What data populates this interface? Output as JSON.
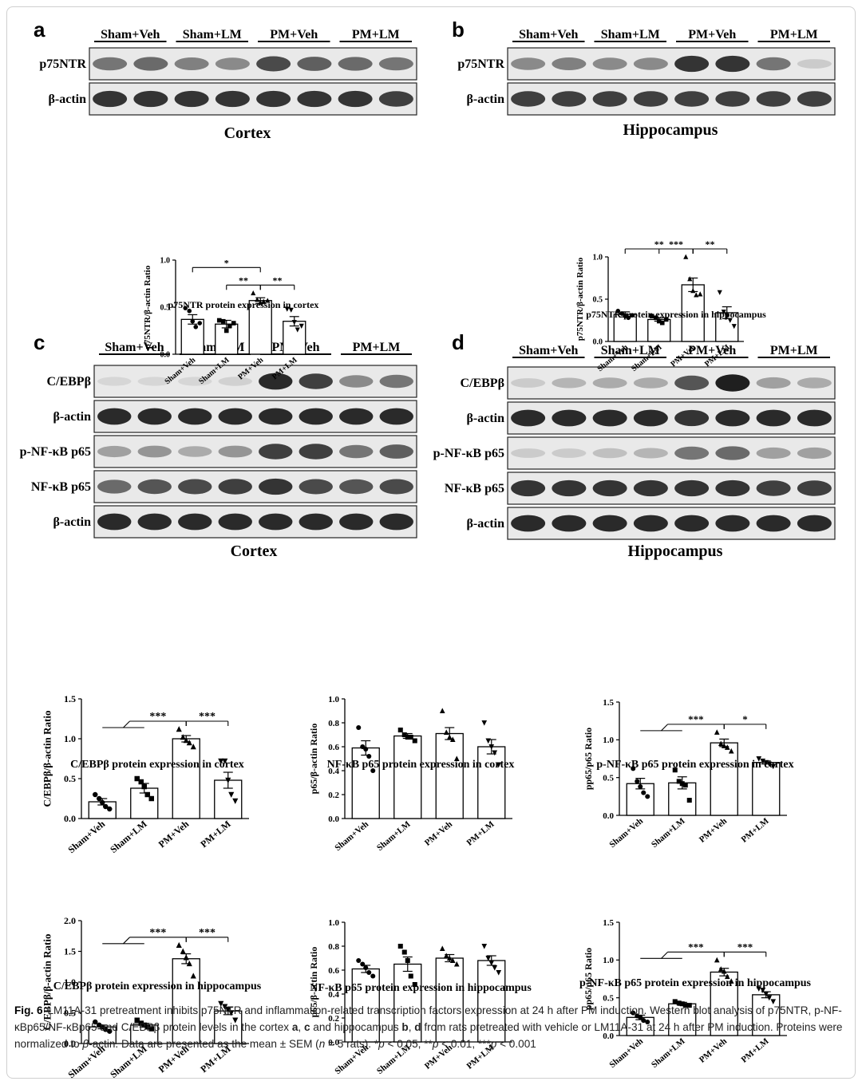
{
  "figure": {
    "panel_labels": [
      "a",
      "b",
      "c",
      "d"
    ],
    "region_labels": [
      "Cortex",
      "Hippocampus",
      "Cortex",
      "Hippocampus"
    ]
  },
  "blots": [
    {
      "groups": [
        "Sham+Veh",
        "Sham+LM",
        "PM+Veh",
        "PM+LM"
      ],
      "rows": [
        {
          "label": "p75NTR",
          "intensity": [
            0.55,
            0.6,
            0.5,
            0.45,
            0.75,
            0.65,
            0.6,
            0.55
          ]
        },
        {
          "label": "β-actin",
          "intensity": [
            0.85,
            0.85,
            0.85,
            0.85,
            0.85,
            0.85,
            0.85,
            0.8
          ]
        }
      ]
    },
    {
      "groups": [
        "Sham+Veh",
        "Sham+LM",
        "PM+Veh",
        "PM+LM"
      ],
      "rows": [
        {
          "label": "p75NTR",
          "intensity": [
            0.45,
            0.5,
            0.45,
            0.45,
            0.85,
            0.85,
            0.55,
            0.15
          ]
        },
        {
          "label": "β-actin",
          "intensity": [
            0.8,
            0.8,
            0.8,
            0.8,
            0.8,
            0.8,
            0.8,
            0.8
          ]
        }
      ]
    },
    {
      "groups": [
        "Sham+Veh",
        "Sham+LM",
        "PM+Veh",
        "PM+LM"
      ],
      "rows": [
        {
          "label": "C/EBPβ",
          "intensity": [
            0.1,
            0.1,
            0.1,
            0.12,
            0.9,
            0.8,
            0.45,
            0.55
          ]
        },
        {
          "label": "β-actin",
          "intensity": [
            0.9,
            0.9,
            0.9,
            0.9,
            0.9,
            0.9,
            0.9,
            0.9
          ]
        },
        {
          "label": "p-NF-κB p65",
          "intensity": [
            0.35,
            0.4,
            0.3,
            0.4,
            0.8,
            0.8,
            0.55,
            0.65
          ]
        },
        {
          "label": "NF-κB p65",
          "intensity": [
            0.6,
            0.7,
            0.75,
            0.8,
            0.85,
            0.75,
            0.7,
            0.75
          ]
        },
        {
          "label": "β-actin",
          "intensity": [
            0.9,
            0.9,
            0.9,
            0.9,
            0.9,
            0.9,
            0.9,
            0.9
          ]
        }
      ]
    },
    {
      "groups": [
        "Sham+Veh",
        "Sham+LM",
        "PM+Veh",
        "PM+LM"
      ],
      "rows": [
        {
          "label": "C/EBPβ",
          "intensity": [
            0.15,
            0.25,
            0.3,
            0.3,
            0.7,
            0.95,
            0.35,
            0.3
          ]
        },
        {
          "label": "β-actin",
          "intensity": [
            0.9,
            0.9,
            0.9,
            0.9,
            0.85,
            0.9,
            0.9,
            0.9
          ]
        },
        {
          "label": "p-NF-κB p65",
          "intensity": [
            0.15,
            0.15,
            0.2,
            0.25,
            0.55,
            0.6,
            0.35,
            0.35
          ]
        },
        {
          "label": "NF-κB p65",
          "intensity": [
            0.85,
            0.85,
            0.85,
            0.85,
            0.85,
            0.85,
            0.8,
            0.8
          ]
        },
        {
          "label": "β-actin",
          "intensity": [
            0.9,
            0.9,
            0.9,
            0.9,
            0.9,
            0.9,
            0.9,
            0.9
          ]
        }
      ]
    }
  ],
  "chart_data": [
    {
      "type": "bar",
      "categories": [
        "Sham+Veh",
        "Sham+LM",
        "PM+Veh",
        "PM+LM"
      ],
      "values": [
        0.37,
        0.32,
        0.57,
        0.35
      ],
      "sem": [
        0.05,
        0.04,
        0.03,
        0.05
      ],
      "points": [
        [
          0.49,
          0.46,
          0.35,
          0.29,
          0.33
        ],
        [
          0.36,
          0.35,
          0.25,
          0.3,
          0.33
        ],
        [
          0.65,
          0.58,
          0.55,
          0.56,
          0.57
        ],
        [
          0.48,
          0.47,
          0.34,
          0.26,
          0.3
        ]
      ],
      "marker": [
        "circle",
        "square",
        "triangle",
        "tri-down"
      ],
      "ylabel": "p75NTR/β-actin Ratio",
      "ylim": [
        0,
        1.0
      ],
      "yticks": [
        "0.0",
        "0.5",
        "1.0"
      ],
      "xlabel": "p75NTR protein expression in cortex",
      "sig": [
        {
          "label": "*",
          "from": 0,
          "to": 2
        },
        {
          "label": "**",
          "from": 1,
          "to": 2
        },
        {
          "label": "**",
          "from": 2,
          "to": 3
        }
      ]
    },
    {
      "type": "bar",
      "categories": [
        "Sham+Veh",
        "Sham+LM",
        "PM+Veh",
        "PM+LM"
      ],
      "values": [
        0.32,
        0.26,
        0.67,
        0.34
      ],
      "sem": [
        0.03,
        0.02,
        0.08,
        0.07
      ],
      "points": [
        [
          0.36,
          0.33,
          0.3,
          0.28,
          0.31
        ],
        [
          0.3,
          0.28,
          0.24,
          0.22,
          0.26
        ],
        [
          1.0,
          0.74,
          0.6,
          0.55,
          0.56
        ],
        [
          0.58,
          0.35,
          0.3,
          0.25,
          0.18
        ]
      ],
      "marker": [
        "circle",
        "square",
        "triangle",
        "tri-down"
      ],
      "ylabel": "p75NTR/β-actin Ratio",
      "ylim": [
        0,
        1.0
      ],
      "yticks": [
        "0.0",
        "0.5",
        "1.0"
      ],
      "xlabel": "p75NTR protein expression in hippocampus",
      "sig": [
        {
          "label": "**",
          "from": 0,
          "to": 2
        },
        {
          "label": "***",
          "from": 1,
          "to": 2
        },
        {
          "label": "**",
          "from": 2,
          "to": 3
        }
      ]
    },
    {
      "type": "bar",
      "categories": [
        "Sham+Veh",
        "Sham+LM",
        "PM+Veh",
        "PM+LM"
      ],
      "values": [
        0.21,
        0.38,
        1.0,
        0.48
      ],
      "sem": [
        0.04,
        0.06,
        0.04,
        0.1
      ],
      "points": [
        [
          0.3,
          0.25,
          0.2,
          0.15,
          0.12
        ],
        [
          0.5,
          0.46,
          0.4,
          0.3,
          0.25
        ],
        [
          1.12,
          1.02,
          0.98,
          0.95,
          0.9
        ],
        [
          0.72,
          0.72,
          0.48,
          0.3,
          0.22
        ]
      ],
      "marker": [
        "circle",
        "square",
        "triangle",
        "tri-down"
      ],
      "ylabel": "C/EBPβ/β-actin Ratio",
      "ylim": [
        0,
        1.5
      ],
      "yticks": [
        "0.0",
        "0.5",
        "1.0",
        "1.5"
      ],
      "xlabel": "C/EBPβ protein expression in cortex",
      "sig": [
        {
          "label": "***",
          "from": 0,
          "to": 2,
          "group": [
            0,
            1
          ]
        },
        {
          "label": "***",
          "from": 2,
          "to": 3
        }
      ]
    },
    {
      "type": "bar",
      "categories": [
        "Sham+Veh",
        "Sham+LM",
        "PM+Veh",
        "PM+LM"
      ],
      "values": [
        0.59,
        0.69,
        0.71,
        0.6
      ],
      "sem": [
        0.06,
        0.02,
        0.05,
        0.06
      ],
      "points": [
        [
          0.76,
          0.6,
          0.58,
          0.52,
          0.4
        ],
        [
          0.74,
          0.7,
          0.68,
          0.68,
          0.65
        ],
        [
          0.9,
          0.72,
          0.68,
          0.66,
          0.5
        ],
        [
          0.8,
          0.65,
          0.6,
          0.55,
          0.45
        ]
      ],
      "marker": [
        "circle",
        "square",
        "triangle",
        "tri-down"
      ],
      "ylabel": "p65/β-actin Ratio",
      "ylim": [
        0,
        1.0
      ],
      "yticks": [
        "0.0",
        "0.2",
        "0.4",
        "0.6",
        "0.8",
        "1.0"
      ],
      "xlabel": "NF-κB p65 protein expression in cortex",
      "sig": []
    },
    {
      "type": "bar",
      "categories": [
        "Sham+Veh",
        "Sham+LM",
        "PM+Veh",
        "PM+LM"
      ],
      "values": [
        0.42,
        0.43,
        0.96,
        0.7
      ],
      "sem": [
        0.07,
        0.08,
        0.05,
        0.02
      ],
      "points": [
        [
          0.62,
          0.45,
          0.38,
          0.3,
          0.25
        ],
        [
          0.6,
          0.45,
          0.42,
          0.4,
          0.2
        ],
        [
          1.1,
          0.95,
          0.92,
          0.9,
          0.85
        ],
        [
          0.75,
          0.72,
          0.7,
          0.68,
          0.65
        ]
      ],
      "marker": [
        "circle",
        "square",
        "triangle",
        "tri-down"
      ],
      "ylabel": "pp65/p65 Ratio",
      "ylim": [
        0,
        1.5
      ],
      "yticks": [
        "0.0",
        "0.5",
        "1.0",
        "1.5"
      ],
      "xlabel": "p-NF-κB p65 protein expression in cortex",
      "sig": [
        {
          "label": "***",
          "from": 0,
          "to": 2,
          "group": [
            0,
            1
          ]
        },
        {
          "label": "*",
          "from": 2,
          "to": 3
        }
      ]
    },
    {
      "type": "bar",
      "categories": [
        "Sham+Veh",
        "Sham+LM",
        "PM+Veh",
        "PM+LM"
      ],
      "values": [
        0.27,
        0.3,
        1.38,
        0.53
      ],
      "sem": [
        0.03,
        0.03,
        0.08,
        0.06
      ],
      "points": [
        [
          0.35,
          0.3,
          0.27,
          0.23,
          0.2
        ],
        [
          0.38,
          0.33,
          0.3,
          0.27,
          0.24
        ],
        [
          1.6,
          1.5,
          1.4,
          1.3,
          1.1
        ],
        [
          0.65,
          0.6,
          0.55,
          0.5,
          0.38
        ]
      ],
      "marker": [
        "circle",
        "square",
        "triangle",
        "tri-down"
      ],
      "ylabel": "C/EBPβ/β-actin Ratio",
      "ylim": [
        0,
        2.0
      ],
      "yticks": [
        "0.0",
        "0.5",
        "1.0",
        "1.5",
        "2.0"
      ],
      "xlabel": "C/EBPβ protein expression in hippocampus",
      "sig": [
        {
          "label": "***",
          "from": 0,
          "to": 2,
          "group": [
            0,
            1
          ]
        },
        {
          "label": "***",
          "from": 2,
          "to": 3
        }
      ]
    },
    {
      "type": "bar",
      "categories": [
        "Sham+Veh",
        "Sham+LM",
        "PM+Veh",
        "PM+LM"
      ],
      "values": [
        0.61,
        0.65,
        0.7,
        0.68
      ],
      "sem": [
        0.03,
        0.06,
        0.03,
        0.04
      ],
      "points": [
        [
          0.68,
          0.65,
          0.62,
          0.58,
          0.55
        ],
        [
          0.8,
          0.75,
          0.68,
          0.55,
          0.48
        ],
        [
          0.78,
          0.72,
          0.7,
          0.68,
          0.65
        ],
        [
          0.8,
          0.7,
          0.66,
          0.62,
          0.58
        ]
      ],
      "marker": [
        "circle",
        "square",
        "triangle",
        "tri-down"
      ],
      "ylabel": "p65/β-actin Ratio",
      "ylim": [
        0,
        1.0
      ],
      "yticks": [
        "0.0",
        "0.2",
        "0.4",
        "0.6",
        "0.8",
        "1.0"
      ],
      "xlabel": "NF-κB p65 protein expression in hippocampus",
      "sig": []
    },
    {
      "type": "bar",
      "categories": [
        "Sham+Veh",
        "Sham+LM",
        "PM+Veh",
        "PM+LM"
      ],
      "values": [
        0.24,
        0.42,
        0.84,
        0.54
      ],
      "sem": [
        0.03,
        0.02,
        0.05,
        0.04
      ],
      "points": [
        [
          0.3,
          0.26,
          0.24,
          0.2,
          0.18
        ],
        [
          0.45,
          0.43,
          0.42,
          0.4,
          0.4
        ],
        [
          1.0,
          0.88,
          0.85,
          0.78,
          0.72
        ],
        [
          0.62,
          0.6,
          0.55,
          0.5,
          0.45
        ]
      ],
      "marker": [
        "circle",
        "square",
        "triangle",
        "tri-down"
      ],
      "ylabel": "pp65/p65 Ratio",
      "ylim": [
        0,
        1.5
      ],
      "yticks": [
        "0.0",
        "0.5",
        "1.0",
        "1.5"
      ],
      "xlabel": "p-NF-κB p65 protein expression in hippocampus",
      "sig": [
        {
          "label": "***",
          "from": 0,
          "to": 2,
          "group": [
            0,
            1
          ]
        },
        {
          "label": "***",
          "from": 2,
          "to": 3
        }
      ]
    }
  ],
  "caption": {
    "fig_label": "Fig. 6",
    "line1": "LM11A-31 pretreatment inhibits p75NTR and inflammation-related transcription factors expression at 24 h after PM induction. Western blot analysis of p75NTR, p-NF-κBp65/NF-κBp65 and C/EBPβ protein levels in the cortex ",
    "a": "a",
    "sep1": ", ",
    "c": "c",
    "mid1": " and hippocampus ",
    "b": "b",
    "sep2": ", ",
    "d": "d",
    "line2": " from rats pretreated with vehicle or LM11A-31 at 24 h after PM induction. Proteins were normalized to ",
    "beta": "β",
    "line3": "-actin. Data are presented as the mean ± SEM (",
    "n": "n",
    "line4": " = 5 rats). *",
    "p1": "p",
    "line5": " < 0.05, **",
    "p2": "p",
    "line6": " < 0.01, ***",
    "p3": "p",
    "line7": " < 0.001"
  }
}
